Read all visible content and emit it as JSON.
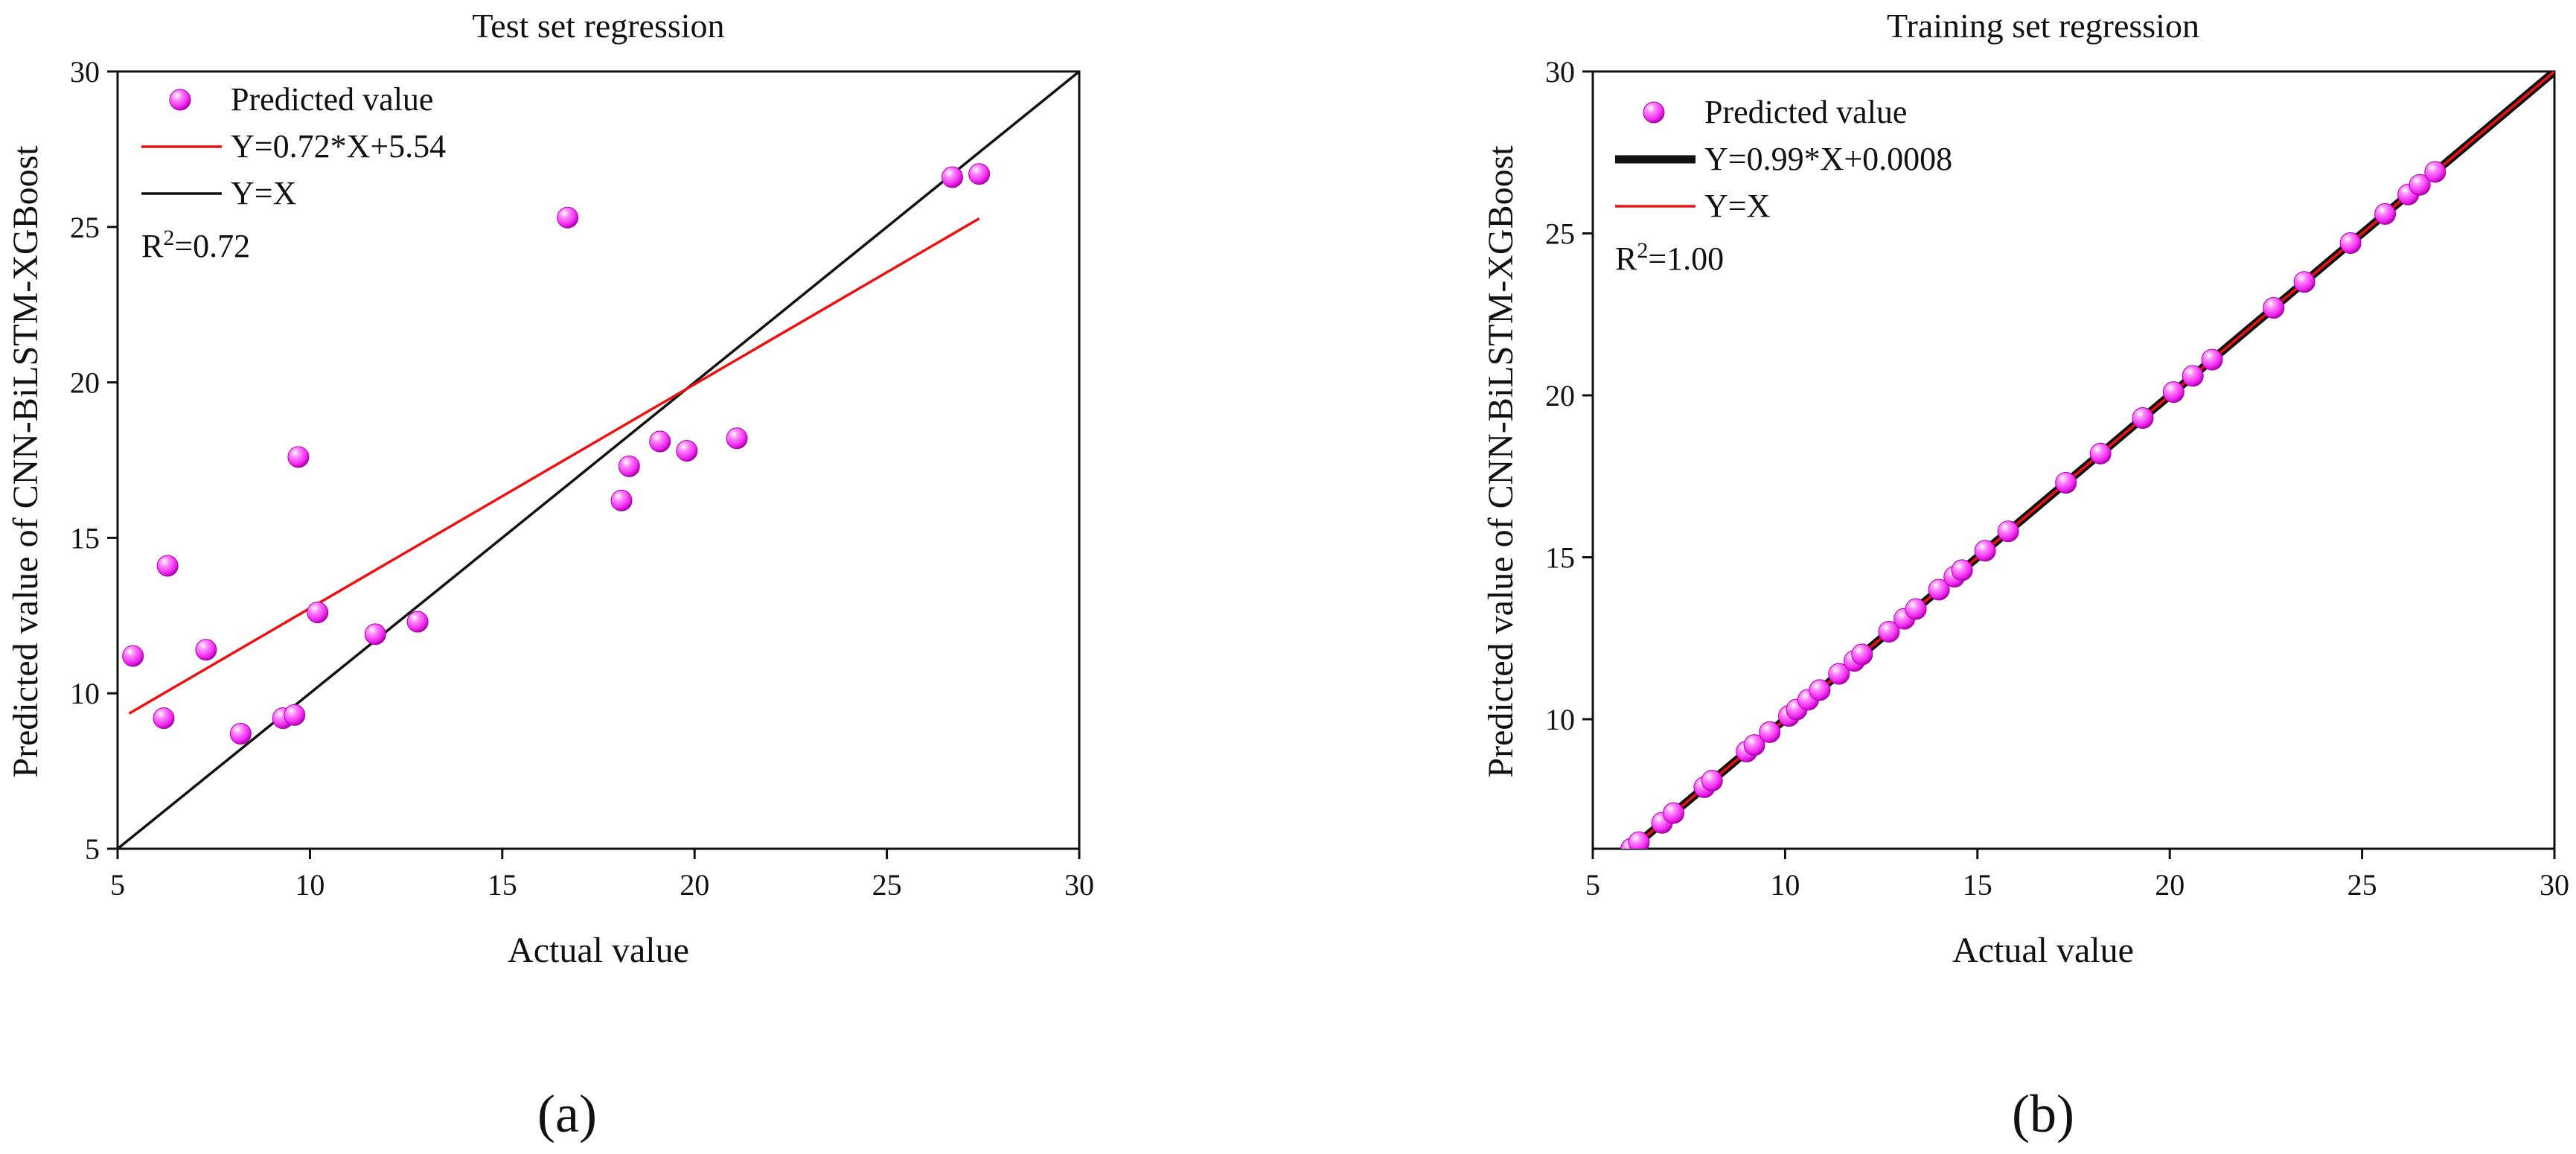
{
  "chart_data": [
    {
      "type": "scatter",
      "panel_label": "(a)",
      "title": "Test set regression",
      "xlabel": "Actual value",
      "ylabel": "Predicted value of CNN-BiLSTM-XGBoost",
      "xlim": [
        5,
        30
      ],
      "ylim": [
        5,
        30
      ],
      "xticks": [
        5,
        10,
        15,
        20,
        25,
        30
      ],
      "yticks": [
        5,
        10,
        15,
        20,
        25,
        30
      ],
      "legend": {
        "placement": "top-left",
        "entries": [
          {
            "label": "Predicted value",
            "kind": "marker",
            "color": "#ff33ff"
          },
          {
            "label": "Y=0.72*X+5.54",
            "kind": "line",
            "color": "#ee1111"
          },
          {
            "label": "Y=X",
            "kind": "line",
            "color": "#111111"
          }
        ]
      },
      "r2_label": {
        "base": "R",
        "sup": "2",
        "value": "=0.72"
      },
      "series": [
        {
          "name": "Predicted value",
          "x": [
            5.4,
            6.2,
            6.3,
            7.3,
            8.2,
            9.3,
            9.6,
            9.7,
            10.2,
            11.7,
            12.8,
            16.7,
            18.1,
            18.3,
            19.1,
            19.8,
            21.1,
            26.7,
            27.4
          ],
          "y": [
            11.2,
            9.2,
            14.1,
            11.4,
            8.7,
            9.2,
            9.3,
            17.6,
            12.6,
            11.9,
            12.3,
            25.3,
            16.2,
            17.3,
            18.1,
            17.8,
            18.2,
            26.6,
            26.7
          ]
        },
        {
          "name": "Y=0.72*X+5.54",
          "x": [
            5.3,
            27.4
          ],
          "y": [
            9.35,
            25.27
          ]
        },
        {
          "name": "Y=X",
          "x": [
            5,
            30
          ],
          "y": [
            5,
            30
          ]
        }
      ]
    },
    {
      "type": "scatter",
      "panel_label": "(b)",
      "title": "Training set regression",
      "xlabel": "Actual value",
      "ylabel": "Predicted value of CNN-BiLSTM-XGBoost",
      "xlim": [
        5,
        30
      ],
      "ylim": [
        6,
        30
      ],
      "xticks": [
        5,
        10,
        15,
        20,
        25,
        30
      ],
      "yticks": [
        10,
        15,
        20,
        25,
        30
      ],
      "legend": {
        "placement": "top-left",
        "entries": [
          {
            "label": "Predicted value",
            "kind": "marker",
            "color": "#ff33ff"
          },
          {
            "label": "Y=0.99*X+0.0008",
            "kind": "thick-line",
            "color": "#111111"
          },
          {
            "label": "Y=X",
            "kind": "line",
            "color": "#ee1111"
          }
        ]
      },
      "r2_label": {
        "base": "R",
        "sup": "2",
        "value": "=1.00"
      },
      "series": [
        {
          "name": "Predicted value",
          "x": [
            6.0,
            6.2,
            6.8,
            7.1,
            7.9,
            8.1,
            9.0,
            9.2,
            9.6,
            10.1,
            10.3,
            10.6,
            10.9,
            11.4,
            11.8,
            12.0,
            12.7,
            13.1,
            13.4,
            14.0,
            14.4,
            14.6,
            15.2,
            15.8,
            17.3,
            18.2,
            19.3,
            20.1,
            20.6,
            21.1,
            22.7,
            23.5,
            24.7,
            25.6,
            26.2,
            26.5,
            26.9
          ],
          "y": [
            6.0,
            6.2,
            6.8,
            7.1,
            7.9,
            8.1,
            9.0,
            9.2,
            9.6,
            10.1,
            10.3,
            10.6,
            10.9,
            11.4,
            11.8,
            12.0,
            12.7,
            13.1,
            13.4,
            14.0,
            14.4,
            14.6,
            15.2,
            15.8,
            17.3,
            18.2,
            19.3,
            20.1,
            20.6,
            21.1,
            22.7,
            23.5,
            24.7,
            25.6,
            26.2,
            26.5,
            26.9
          ]
        },
        {
          "name": "Y=0.99*X+0.0008",
          "x": [
            6,
            30
          ],
          "y": [
            6,
            30
          ]
        },
        {
          "name": "Y=X",
          "x": [
            6,
            30
          ],
          "y": [
            6,
            30
          ]
        }
      ]
    }
  ]
}
